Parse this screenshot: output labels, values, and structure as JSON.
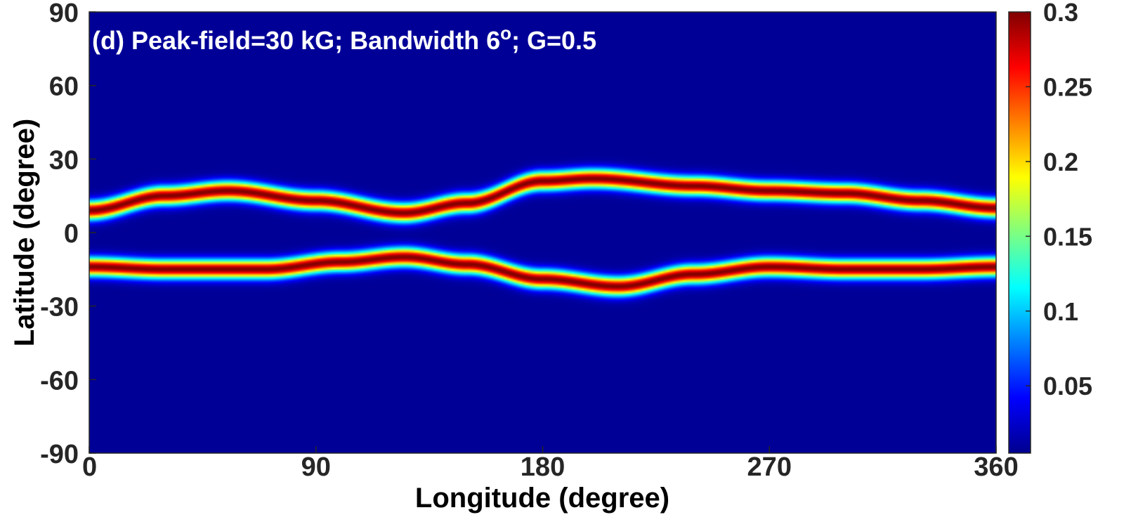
{
  "chart_data": {
    "type": "heatmap",
    "title": "(d) Peak-field=30 kG; Bandwidth 6",
    "title_superscript": "o",
    "title_suffix": "; G=0.5",
    "xlabel": "Longitude (degree)",
    "ylabel": "Latitude (degree)",
    "xlim": [
      0,
      360
    ],
    "ylim": [
      -90,
      90
    ],
    "x_ticks": [
      0,
      90,
      180,
      270,
      360
    ],
    "y_ticks": [
      90,
      60,
      30,
      0,
      -30,
      -60,
      -90
    ],
    "colormap": "jet",
    "colorbar": {
      "range": [
        0.005,
        0.3
      ],
      "ticks": [
        "0.05",
        "0.1",
        "0.15",
        "0.2",
        "0.25",
        "0.3"
      ]
    },
    "peak_value": 0.3,
    "band_sigma_deg": 2.6,
    "series": [
      {
        "name": "northern band center latitude",
        "x": [
          0,
          30,
          55,
          90,
          125,
          150,
          180,
          200,
          240,
          270,
          300,
          330,
          360
        ],
        "y": [
          9,
          15,
          17,
          13,
          8,
          12,
          21,
          22,
          19,
          17,
          16,
          13,
          10
        ]
      },
      {
        "name": "southern band center latitude",
        "x": [
          0,
          30,
          70,
          100,
          125,
          150,
          180,
          210,
          240,
          270,
          300,
          330,
          360
        ],
        "y": [
          -14,
          -15,
          -15,
          -12,
          -10,
          -13,
          -19,
          -22,
          -17,
          -14,
          -15,
          -15,
          -14
        ]
      }
    ]
  }
}
